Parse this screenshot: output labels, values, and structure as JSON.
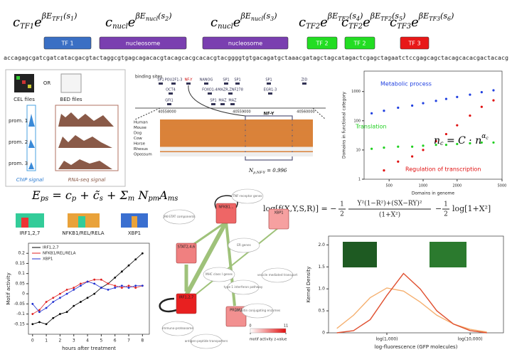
{
  "equation_terms": [
    [
      "c",
      "TF1",
      "e",
      "βE",
      "TF1",
      "(s",
      "1",
      ")"
    ],
    [
      "c",
      "nucl",
      "e",
      "βE",
      "nucl",
      "(s",
      "2",
      ")"
    ],
    [
      "c",
      "nucl",
      "e",
      "βE",
      "nucl",
      "(s",
      "3",
      ")"
    ],
    [
      "c",
      "TF2",
      "e",
      "βE",
      "TF2",
      "(s",
      "4",
      ")"
    ],
    [
      "c",
      "TF2",
      "e",
      "βE",
      "TF2",
      "(s",
      "5",
      ")"
    ],
    [
      "c",
      "TF3",
      "e",
      "βE",
      "TF3",
      "(s",
      "6",
      ")"
    ]
  ],
  "boxes": [
    "TF 1",
    "nucleosome",
    "nucleosome",
    "TF 2",
    "TF 2",
    "TF 3"
  ],
  "sequence": "accagagcgatcgatcatacgacgtactaggcgtgagcagacacgtacagcacgcacacgtacggggtgtgacagatgctaaacgatagctagcatagactcgagctagaatctccgagcagctacagcacacgactacacg",
  "data_panel": {
    "cel": "CEL files",
    "or": "OR",
    "bed": "BED files",
    "promoters": [
      "prom. 1",
      "prom. 2",
      "prom. 3"
    ],
    "chip": "ChIP signal",
    "rnaseq": "RNA-seq signal"
  },
  "browser": {
    "title": "binding sites",
    "row1": [
      "SP1",
      "POU2F1-3",
      "NF-Y",
      "NANOG",
      "SP1",
      "SP1",
      "SP1",
      "ZID"
    ],
    "row2": [
      "OCT4",
      "FOXO1-4",
      "MAZR,ZNF278",
      "EGR1-3"
    ],
    "row3": [
      "GFI1",
      "SP1",
      "MAZ",
      "MAZ"
    ],
    "coordinates": [
      "40558000",
      "40559000",
      "40560000"
    ],
    "species": [
      "Human",
      "Mouse",
      "Dog",
      "Cow",
      "Horse",
      "Rhesus",
      "Opossum"
    ],
    "motif": "NF-Y",
    "posterior": [
      "N",
      "p,NF-Y",
      " = 0.996"
    ]
  },
  "energy_equation": [
    "E",
    "ps",
    " = c",
    "p",
    " + c̃",
    "s",
    " + Σ",
    "m",
    " N",
    "pm",
    "A",
    "ms"
  ],
  "logos": [
    "IRF1,2,7",
    "NFKB1/REL/RELA",
    "XBP1"
  ],
  "likelihood": {
    "lhs": "log[f(X,Y,S,R)] = −",
    "half": [
      "1",
      "2"
    ],
    "numerator": "Y²(1−R²)+(SX−RY)²",
    "denominator": "(1+X²)",
    "minus": "−",
    "tail": "log[1+X²]"
  },
  "network": {
    "factors": [
      "NFKB1...",
      "XBP1",
      "STAT2,4,6",
      "IRF1,2,7",
      "PRDM1"
    ],
    "targets": [
      "JAK-STAT components",
      "TNF-receptor genes",
      "ER genes",
      "vesicle mediated transport",
      "MHC class I genes",
      "type 1 interferon pathway",
      "ubiquitin conjugating enzymes",
      "immuno-proteasome",
      "antigen-peptide transporters"
    ],
    "colorbar_ticks": [
      0,
      11
    ],
    "colorbar_label": "motif activity z-value"
  },
  "chart_data": [
    {
      "type": "line",
      "xlabel": "hours after treatment",
      "ylabel": "Motif activity",
      "x": [
        0,
        0.5,
        1,
        1.5,
        2,
        2.5,
        3,
        3.5,
        4,
        4.5,
        5,
        5.5,
        6,
        6.5,
        7,
        7.5,
        8
      ],
      "series": [
        {
          "name": "IRF1,2,7",
          "color": "#000000",
          "values": [
            -0.15,
            -0.14,
            -0.15,
            -0.12,
            -0.1,
            -0.09,
            -0.06,
            -0.04,
            -0.02,
            0.0,
            0.03,
            0.05,
            0.08,
            0.11,
            0.14,
            0.17,
            0.2
          ]
        },
        {
          "name": "NFKB1/REL/RELA",
          "color": "#e02020",
          "values": [
            -0.1,
            -0.08,
            -0.04,
            -0.02,
            0.0,
            0.02,
            0.03,
            0.05,
            0.06,
            0.07,
            0.07,
            0.05,
            0.04,
            0.03,
            0.04,
            0.03,
            0.04
          ]
        },
        {
          "name": "XBP1",
          "color": "#2030d0",
          "values": [
            -0.05,
            -0.09,
            -0.07,
            -0.04,
            -0.02,
            0.0,
            0.02,
            0.04,
            0.06,
            0.05,
            0.03,
            0.02,
            0.03,
            0.04,
            0.03,
            0.04,
            0.04
          ]
        }
      ],
      "xlim": [
        -0.3,
        8.5
      ],
      "xticks": [
        0,
        1,
        2,
        3,
        4,
        5,
        6,
        7,
        8
      ],
      "ylim": [
        -0.2,
        0.25
      ],
      "yticks": [
        -0.15,
        -0.1,
        -0.05,
        0,
        0.05,
        0.1,
        0.15,
        0.2
      ],
      "legend": "upper left"
    },
    {
      "type": "line",
      "xlabel": "log-fluorescence (GFP molecules)",
      "ylabel": "Kernel Density",
      "x": [
        2.4,
        2.6,
        2.8,
        3.0,
        3.2,
        3.4,
        3.6,
        3.8,
        4.0,
        4.2
      ],
      "series": [
        {
          "color": "#f5b070",
          "values": [
            0.1,
            0.4,
            0.8,
            1.02,
            0.95,
            0.7,
            0.4,
            0.2,
            0.08,
            0.02
          ]
        },
        {
          "color": "#e05030",
          "values": [
            0,
            0.05,
            0.3,
            0.85,
            1.35,
            1.0,
            0.5,
            0.2,
            0.05,
            0.0
          ]
        }
      ],
      "xlim": [
        2.3,
        4.4
      ],
      "xticks": [
        {
          "value": 3,
          "label": "log(1,000)"
        },
        {
          "value": 4,
          "label": "log(10,000)"
        }
      ],
      "ylim": [
        0,
        2.2
      ],
      "yticks": [
        0,
        0.5,
        {
          "value": 1,
          "label": "1.0"
        },
        1.5,
        {
          "value": 2,
          "label": "2.0"
        }
      ]
    },
    {
      "type": "scatter",
      "xlabel": "Domains in genome",
      "ylabel": "Domains in functional category",
      "annotation": [
        "n",
        "c",
        " = C · n",
        "α",
        "c"
      ],
      "series": [
        {
          "name": "Metabolic process",
          "color": "#2040e0",
          "x": [
            350,
            450,
            600,
            800,
            1000,
            1300,
            1600,
            2000,
            2600,
            3300,
            4200
          ],
          "values": [
            180,
            220,
            280,
            330,
            400,
            480,
            560,
            650,
            780,
            950,
            1100
          ]
        },
        {
          "name": "Translation",
          "color": "#20d020",
          "x": [
            350,
            450,
            600,
            800,
            1000,
            1300,
            1600,
            2000,
            2600,
            3300,
            4200
          ],
          "values": [
            11,
            12,
            13,
            13,
            14,
            15,
            15,
            16,
            17,
            18,
            18
          ]
        },
        {
          "name": "Regulation of transcription",
          "color": "#e01010",
          "x": [
            450,
            600,
            800,
            1000,
            1300,
            1600,
            2000,
            2600,
            3300,
            4200
          ],
          "values": [
            2,
            4,
            6,
            10,
            20,
            35,
            70,
            150,
            300,
            500
          ]
        }
      ],
      "log_x": true,
      "log_y": true,
      "xlim": [
        300,
        5000
      ],
      "xticks": [
        500,
        1000,
        2000,
        5000
      ],
      "ylim": [
        1,
        5000
      ],
      "yticks": [
        1,
        10,
        100,
        1000
      ]
    }
  ]
}
